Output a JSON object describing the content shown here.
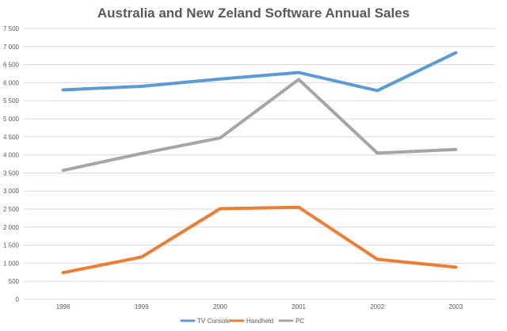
{
  "chart_data": {
    "type": "line",
    "title": "Australia and New Zeland Software Annual Sales",
    "categories": [
      "1998",
      "1999",
      "2000",
      "2001",
      "2002",
      "2003"
    ],
    "series": [
      {
        "name": "TV Console",
        "color": "#5b9bd5",
        "values": [
          5800,
          5900,
          6100,
          6280,
          5780,
          6830
        ]
      },
      {
        "name": "Handheld",
        "color": "#ed7d31",
        "values": [
          740,
          1170,
          2510,
          2550,
          1110,
          890
        ]
      },
      {
        "name": "PC",
        "color": "#a5a5a5",
        "values": [
          3570,
          4040,
          4470,
          6090,
          4050,
          4150
        ]
      }
    ],
    "ylim": [
      0,
      7500
    ],
    "y_ticks": [
      0,
      500,
      1000,
      1500,
      2000,
      2500,
      3000,
      3500,
      4000,
      4500,
      5000,
      5500,
      6000,
      6500,
      7000,
      7500
    ],
    "y_tick_labels": [
      "0",
      "500",
      "1 000",
      "1 500",
      "2 000",
      "2 500",
      "3 000",
      "3 500",
      "4 000",
      "4 500",
      "5 000",
      "5 500",
      "6 000",
      "6 500",
      "7 000",
      "7 500"
    ],
    "grid": true,
    "legend_position": "bottom"
  }
}
